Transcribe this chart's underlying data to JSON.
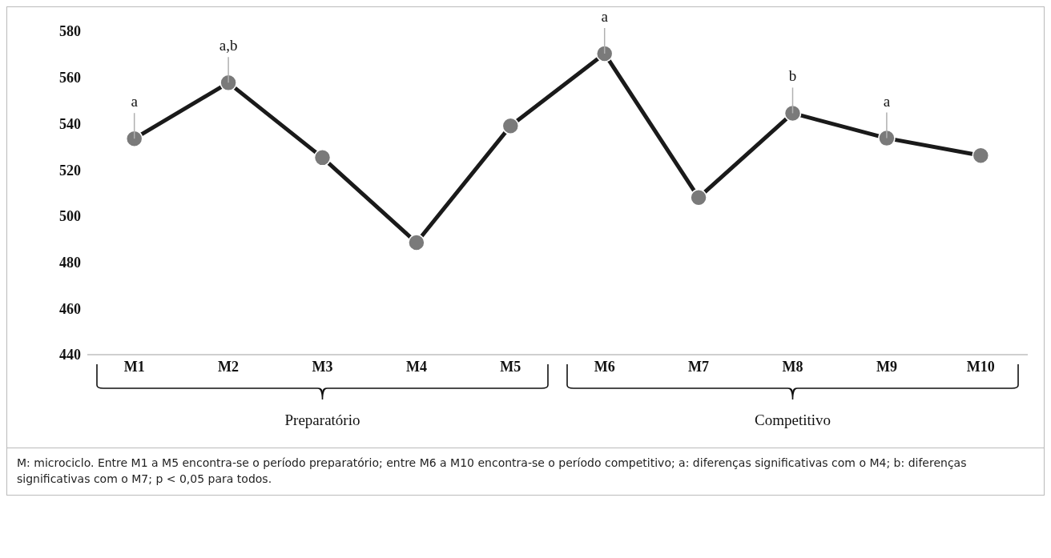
{
  "chart_data": {
    "type": "line",
    "categories": [
      "M1",
      "M2",
      "M3",
      "M4",
      "M5",
      "M6",
      "M7",
      "M8",
      "M9",
      "M10"
    ],
    "series": [
      {
        "color": "#1a1a1a",
        "values": [
          533.5,
          557.7,
          525.3,
          488.5,
          539,
          570.3,
          508,
          544.5,
          533.7,
          526.2
        ]
      }
    ],
    "ylim": [
      440,
      580
    ],
    "yticks": [
      440,
      460,
      480,
      500,
      520,
      540,
      560,
      580
    ],
    "marker": "circle",
    "annotations": [
      {
        "text": "a",
        "x": "M1",
        "y": 533.5
      },
      {
        "text": "a,b",
        "x": "M2",
        "y": 557.7
      },
      {
        "text": "a",
        "x": "M6",
        "y": 570.3
      },
      {
        "text": "b",
        "x": "M8",
        "y": 544.5
      },
      {
        "text": "a",
        "x": "M9",
        "y": 533.7
      },
      "Preparatório",
      "Competitivo",
      "M: microciclo. Entre M1 a M5 encontra-se o período preparatório; entre M6 a M10 encontra-se o período competitivo; a: diferenças significativas com o M4; b: diferenças significativas com o M7; p < 0,05 para todos."
    ]
  }
}
